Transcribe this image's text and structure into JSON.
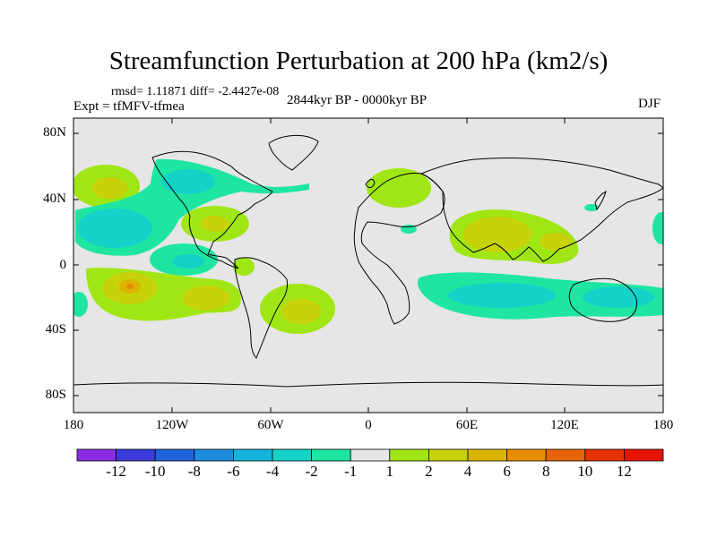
{
  "title": "Streamfunction Perturbation at 200 hPa (km2/s)",
  "stats_line": "rmsd= 1.11871 diff= -2.4427e-08",
  "experiment": "Expt = tfMFV-tfmea",
  "period": "2844kyr BP - 0000kyr BP",
  "season": "DJF",
  "lat_labels": [
    "80N",
    "40N",
    "0",
    "40S",
    "80S"
  ],
  "lon_labels": [
    "180",
    "120W",
    "60W",
    "0",
    "60E",
    "120E",
    "180"
  ],
  "legend": {
    "labels": [
      "-12",
      "-10",
      "-8",
      "-6",
      "-4",
      "-2",
      "-1",
      "1",
      "2",
      "4",
      "6",
      "8",
      "10",
      "12"
    ],
    "colors": [
      "#8a2be2",
      "#3c3cdc",
      "#1e64dc",
      "#1e8cdc",
      "#14b4dc",
      "#14d2c8",
      "#1ee6a0",
      "#e6e6e6",
      "#a0e614",
      "#c8d20a",
      "#dcb400",
      "#e68c00",
      "#e6640a",
      "#e63200",
      "#e61400"
    ]
  },
  "map_colors": {
    "ocean_bg": "#e6e6e6",
    "coast": "#000000",
    "pos1": "#a0e614",
    "pos2": "#c8d20a",
    "pos3": "#dcb400",
    "pos4": "#e68c00",
    "neg1": "#1ee6a0",
    "neg2": "#14d2c8",
    "neg3": "#14b4dc"
  }
}
